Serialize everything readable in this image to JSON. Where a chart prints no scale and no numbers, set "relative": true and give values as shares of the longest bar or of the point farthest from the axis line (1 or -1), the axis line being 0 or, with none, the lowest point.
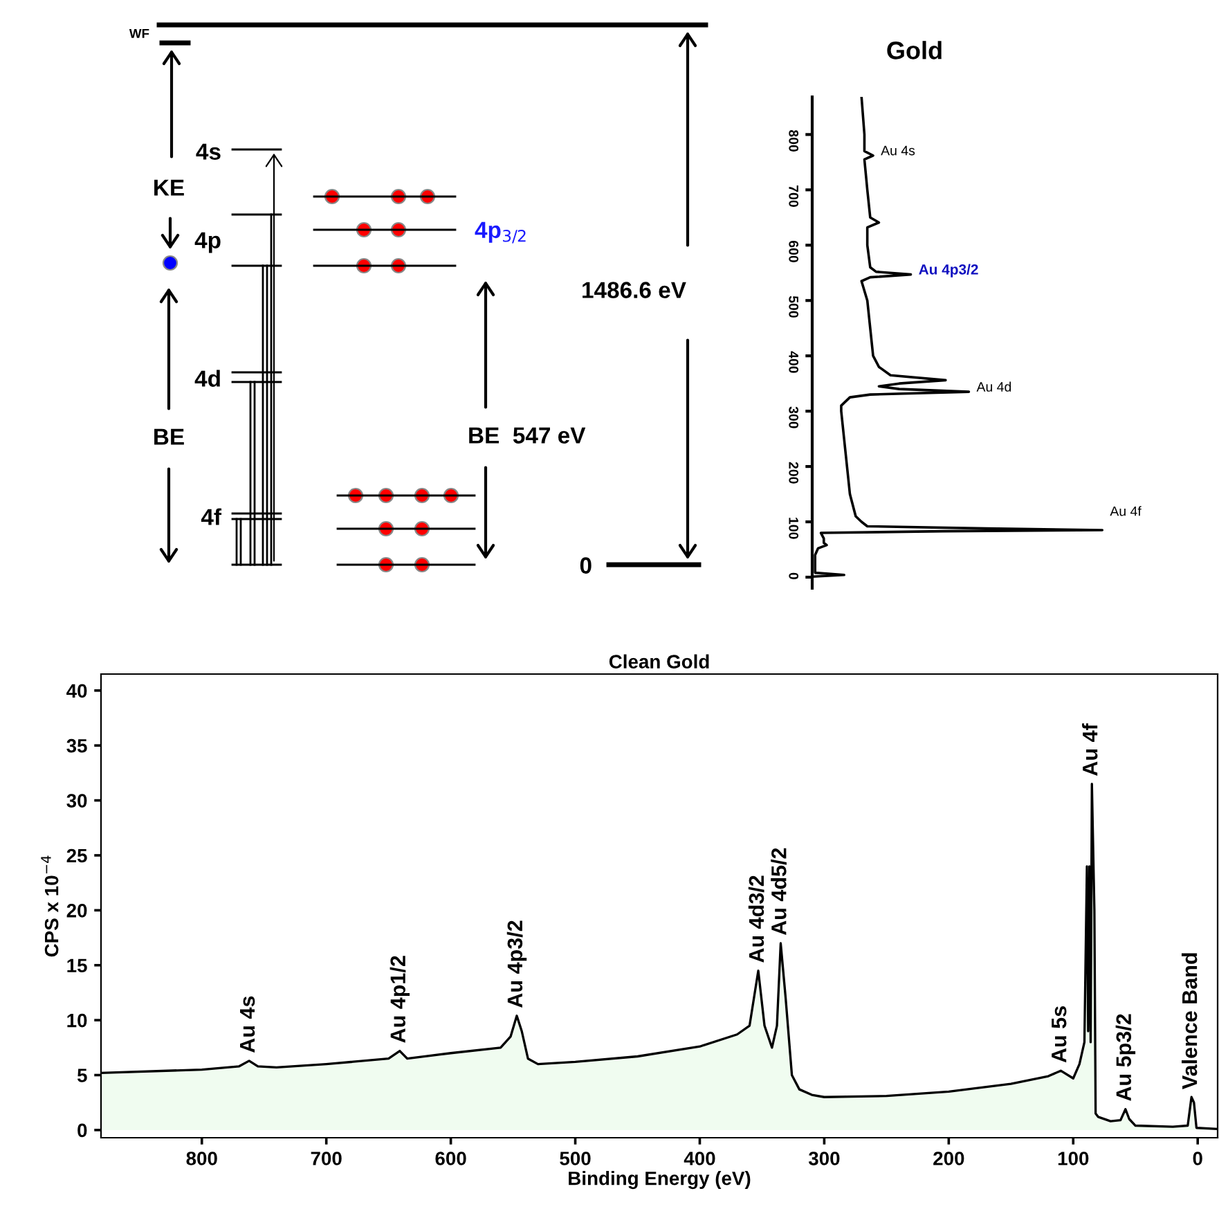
{
  "chart_data": [
    {
      "type": "other",
      "annotations": [
        "WF",
        "KE",
        "4s",
        "4p",
        "4d",
        "BE",
        "4f",
        "4p$_{3/2}$",
        "BE  547 eV",
        "1486.6 eV",
        "0"
      ]
    },
    {
      "type": "line",
      "title": "Gold",
      "orientation": "horizontal",
      "relative": true,
      "ylim": [
        -20,
        868
      ],
      "yticks": [
        0,
        100,
        200,
        300,
        400,
        500,
        600,
        700,
        800
      ],
      "series": [
        {
          "color": "#000000",
          "x": [
            868,
            800,
            770,
            762,
            755,
            700,
            650,
            641,
            632,
            600,
            560,
            552,
            547,
            542,
            535,
            500,
            450,
            400,
            380,
            365,
            356,
            350,
            345,
            340,
            335,
            330,
            325,
            310,
            300,
            250,
            200,
            150,
            110,
            100,
            92,
            88,
            85,
            83,
            80,
            70,
            62,
            58,
            52,
            40,
            20,
            8,
            4,
            1,
            -10
          ],
          "values": [
            0.17,
            0.18,
            0.18,
            0.21,
            0.18,
            0.19,
            0.2,
            0.23,
            0.19,
            0.19,
            0.2,
            0.22,
            0.34,
            0.2,
            0.17,
            0.19,
            0.2,
            0.21,
            0.23,
            0.27,
            0.46,
            0.3,
            0.23,
            0.3,
            0.54,
            0.2,
            0.13,
            0.1,
            0.1,
            0.11,
            0.12,
            0.13,
            0.15,
            0.17,
            0.19,
            0.6,
            1.0,
            0.45,
            0.03,
            0.04,
            0.04,
            0.05,
            0.02,
            0.01,
            0.01,
            0.01,
            0.11,
            0.0,
            0.0
          ]
        }
      ],
      "annotations": [
        {
          "text": "Au 4s",
          "x": 0.21,
          "y": 762
        },
        {
          "text": "Au 4p3/2",
          "x": 0.34,
          "y": 547
        },
        {
          "text": "Au 4d",
          "x": 0.54,
          "y": 335
        },
        {
          "text": "Au 4f",
          "x": 1.0,
          "y": 85
        }
      ]
    },
    {
      "type": "area",
      "title": "Clean Gold",
      "xlabel": "Binding Energy (eV)",
      "ylabel": "CPS x 10$^{−4}$",
      "xlim": [
        881,
        -16
      ],
      "ylim": [
        -0.7,
        41.5
      ],
      "xticks": [
        800,
        700,
        600,
        500,
        400,
        300,
        200,
        100,
        0
      ],
      "yticks": [
        0,
        5,
        10,
        15,
        20,
        25,
        30,
        35,
        40
      ],
      "series": [
        {
          "color": "#f0fcf0",
          "x": [
            881,
            800,
            770,
            762,
            755,
            740,
            700,
            650,
            641,
            635,
            600,
            560,
            552,
            547,
            543,
            538,
            530,
            500,
            450,
            400,
            370,
            360,
            353,
            348,
            342,
            338,
            335,
            331,
            326,
            320,
            310,
            300,
            250,
            200,
            150,
            120,
            110,
            100,
            95,
            91,
            89,
            88,
            87,
            86,
            85,
            83,
            82,
            80,
            70,
            62,
            58,
            55,
            50,
            20,
            8,
            5,
            3,
            1,
            -16
          ],
          "values": [
            5.2,
            5.5,
            5.8,
            6.3,
            5.8,
            5.7,
            6.0,
            6.5,
            7.2,
            6.5,
            7.0,
            7.5,
            8.5,
            10.4,
            9.0,
            6.5,
            6.0,
            6.2,
            6.7,
            7.6,
            8.7,
            9.5,
            14.5,
            9.5,
            7.5,
            9.5,
            17.0,
            12.0,
            5.0,
            3.7,
            3.2,
            3.0,
            3.1,
            3.5,
            4.2,
            4.9,
            5.4,
            4.7,
            6.0,
            8.0,
            24.0,
            9.0,
            24.0,
            8.0,
            31.5,
            20.0,
            1.5,
            1.2,
            0.8,
            0.9,
            1.9,
            1.0,
            0.4,
            0.3,
            0.4,
            3.0,
            2.5,
            0.2,
            0.1
          ]
        }
      ],
      "annotations": [
        {
          "text": "Au 4s",
          "x": 762,
          "y": 6.3
        },
        {
          "text": "Au 4p1/2",
          "x": 641,
          "y": 7.2
        },
        {
          "text": "Au 4p3/2",
          "x": 547,
          "y": 10.4
        },
        {
          "text": "Au 4d3/2",
          "x": 353,
          "y": 14.5
        },
        {
          "text": "Au 4d5/2",
          "x": 335,
          "y": 17.0
        },
        {
          "text": "Au 5s",
          "x": 110,
          "y": 5.4
        },
        {
          "text": "Au 4f",
          "x": 85,
          "y": 31.5
        },
        {
          "text": "Au 5p3/2",
          "x": 58,
          "y": 1.9
        },
        {
          "text": "Valence Band",
          "x": 5,
          "y": 3.0
        }
      ]
    }
  ]
}
